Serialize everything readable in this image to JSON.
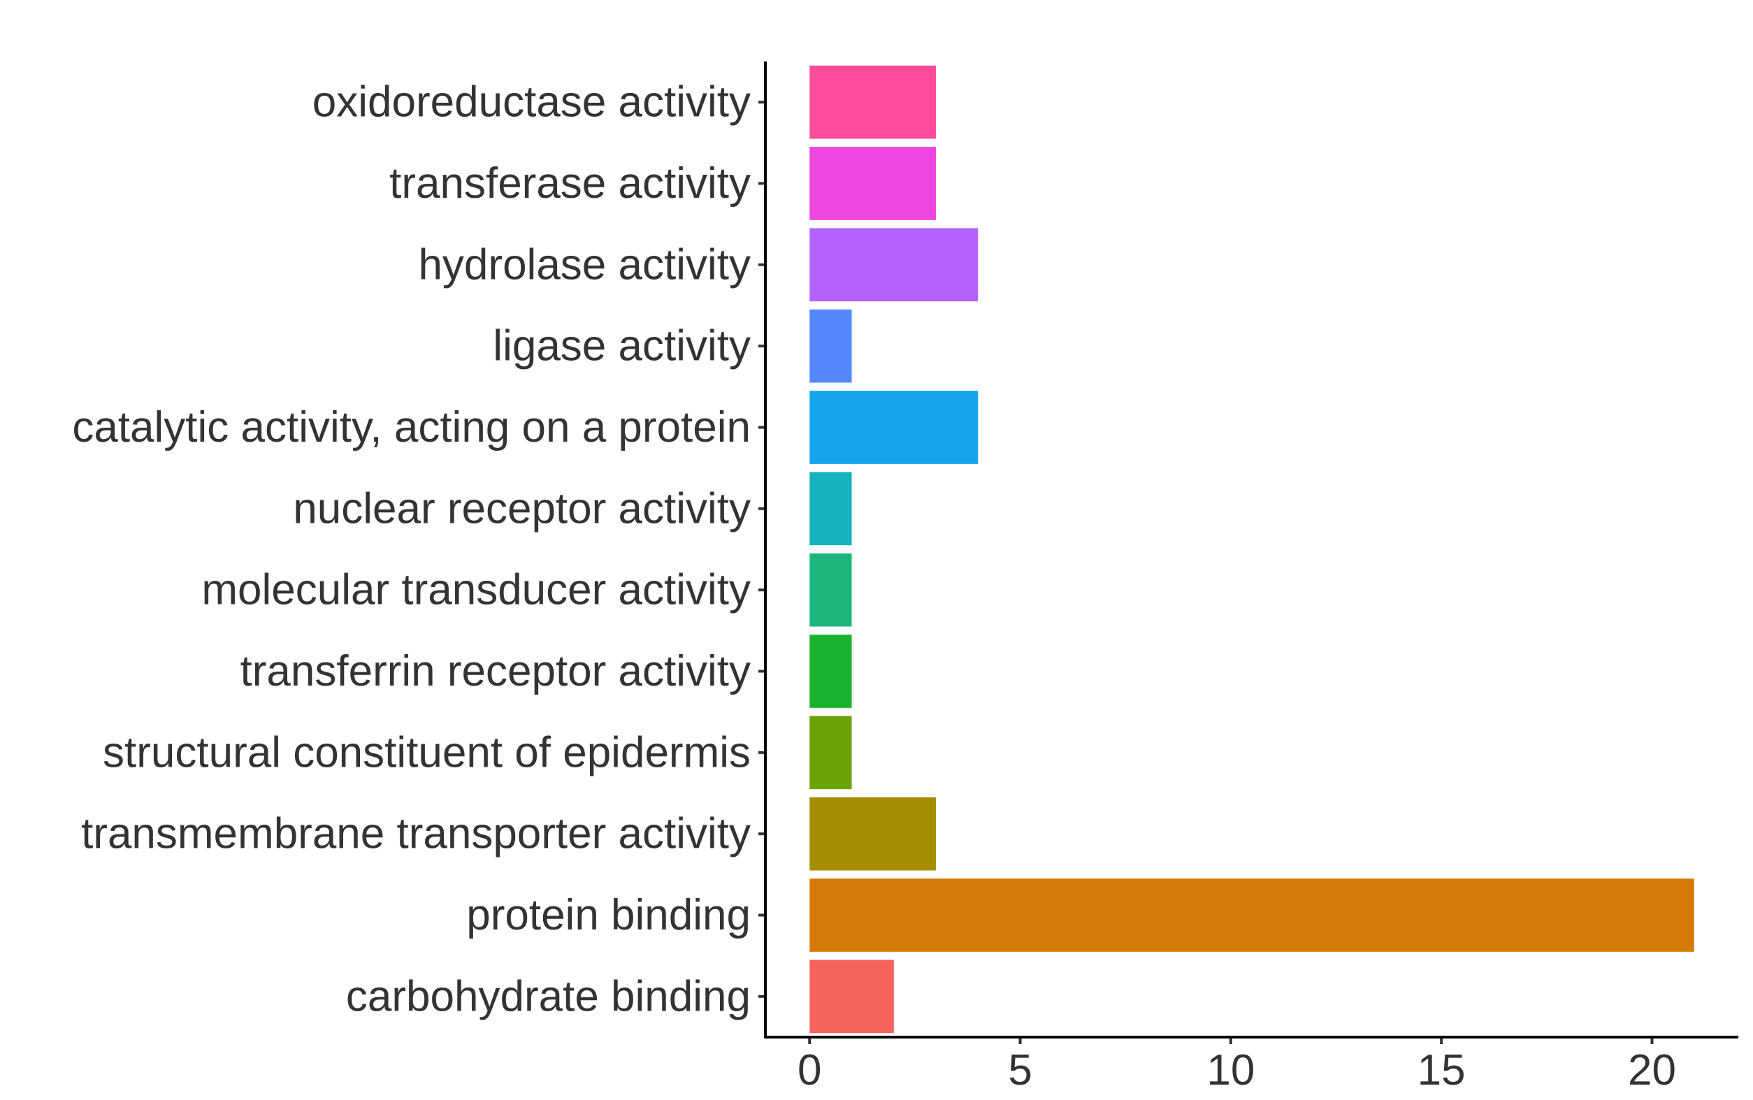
{
  "chart_data": {
    "type": "bar",
    "orientation": "horizontal",
    "categories": [
      "oxidoreductase activity",
      "transferase activity",
      "hydrolase activity",
      "ligase activity",
      "catalytic activity, acting on a protein",
      "nuclear receptor activity",
      "molecular transducer activity",
      "transferrin receptor activity",
      "structural constituent of epidermis",
      "transmembrane transporter activity",
      "protein binding",
      "carbohydrate binding"
    ],
    "values": [
      3,
      3,
      4,
      1,
      4,
      1,
      1,
      1,
      1,
      3,
      21,
      2
    ],
    "colors": [
      "#FB4B9A",
      "#ED45DD",
      "#B561FB",
      "#5588FF",
      "#16A5EB",
      "#16B3BE",
      "#1BB67A",
      "#1AB22F",
      "#6BA305",
      "#A58D02",
      "#D57A07",
      "#F5635C"
    ],
    "xticks": [
      0,
      5,
      10,
      15,
      20
    ],
    "xlim": [
      -1.05,
      22.05
    ],
    "title": "",
    "xlabel": "",
    "ylabel": "",
    "grid": false,
    "legend": "none"
  }
}
